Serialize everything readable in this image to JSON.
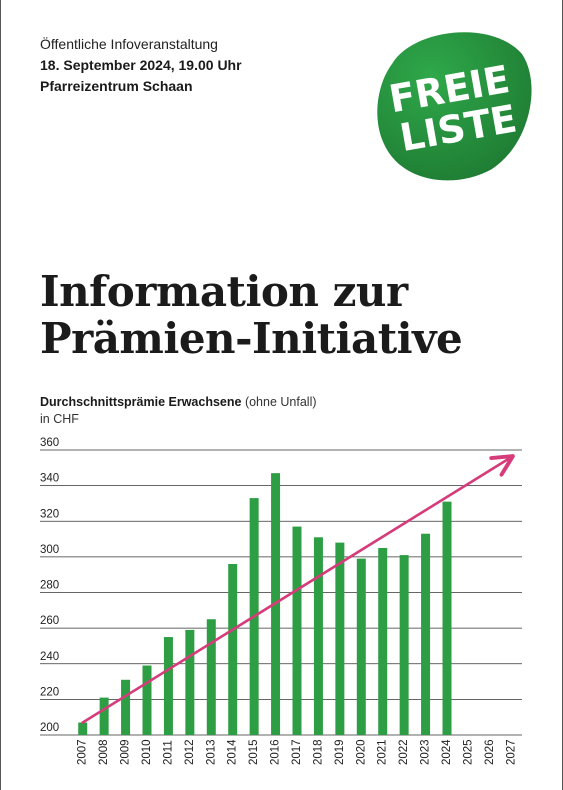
{
  "event": {
    "type": "Öffentliche Infoveranstaltung",
    "date": "18. September 2024, 19.00 Uhr",
    "place": "Pfarreizentrum Schaan"
  },
  "logo": {
    "line1": "FREIE",
    "line2": "LISTE",
    "color_dark": "#1e7a32",
    "color_light": "#2fa84a"
  },
  "headline": {
    "line1": "Information zur",
    "line2": "Prämien-Initiative"
  },
  "chart_caption": {
    "title_bold": "Durchschnittsprämie Erwachsene",
    "title_note": " (ohne Unfall)",
    "unit": "in CHF"
  },
  "chart_data": {
    "type": "bar",
    "title": "Durchschnittsprämie Erwachsene (ohne Unfall)",
    "ylabel": "in CHF",
    "xlabel": "",
    "ylim": [
      200,
      360
    ],
    "yticks": [
      200,
      220,
      240,
      260,
      280,
      300,
      320,
      340,
      360
    ],
    "grid": true,
    "categories": [
      "2007",
      "2008",
      "2009",
      "2010",
      "2011",
      "2012",
      "2013",
      "2014",
      "2015",
      "2016",
      "2017",
      "2018",
      "2019",
      "2020",
      "2021",
      "2022",
      "2023",
      "2024",
      "2025",
      "2026",
      "2027"
    ],
    "series": [
      {
        "values": [
          207,
          221,
          231,
          239,
          255,
          259,
          265,
          296,
          333,
          347,
          317,
          311,
          308,
          299,
          305,
          301,
          313,
          331,
          null,
          null,
          null
        ]
      }
    ],
    "trend_arrow": {
      "from": [
        "2007",
        207
      ],
      "to": [
        "2027",
        356
      ]
    },
    "colors": {
      "bar": "#2e9e44",
      "trend": "#d63b7a",
      "grid": "#333333"
    }
  }
}
